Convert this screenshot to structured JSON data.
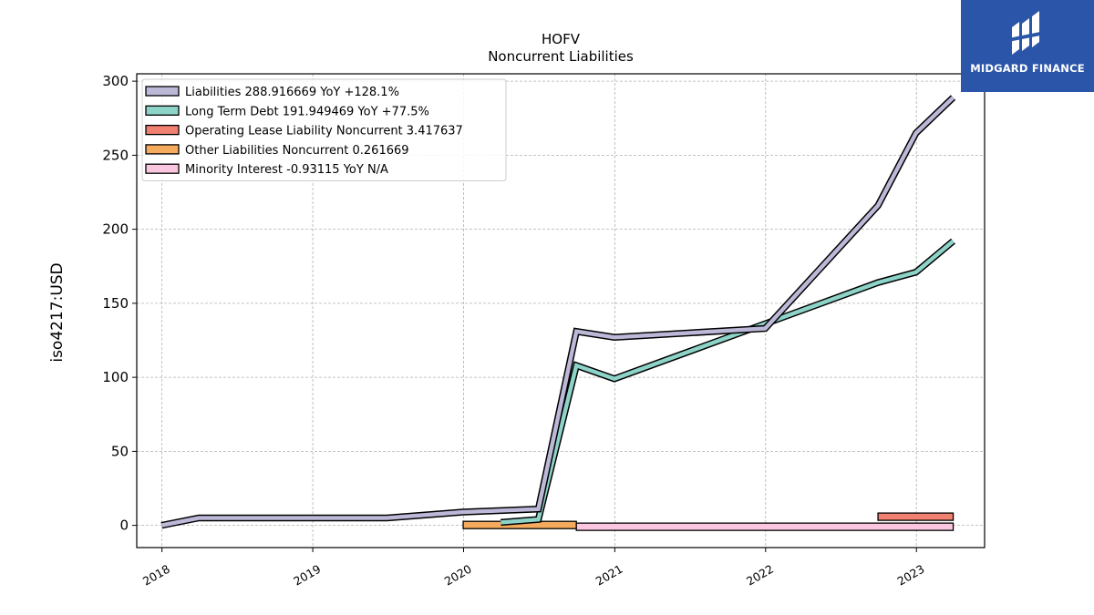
{
  "brand": {
    "name": "MIDGARD FINANCE",
    "logo_icon": "midgard-finance-logo-icon",
    "bg_color": "#2b55a8"
  },
  "chart_data": {
    "type": "line",
    "title": "HOFV",
    "subtitle": "Noncurrent  Liabilities",
    "xlabel": "",
    "ylabel": "iso4217:USD",
    "ylim": [
      -15,
      305
    ],
    "yticks": [
      0,
      50,
      100,
      150,
      200,
      250,
      300
    ],
    "xlim": [
      "2017-11-01",
      "2023-06-15"
    ],
    "xticks": [
      "2018",
      "2019",
      "2020",
      "2021",
      "2022",
      "2023"
    ],
    "grid": true,
    "legend_position": "top-left",
    "series": [
      {
        "name": "Liabilities",
        "legend": "Liabilities  288.916669 YoY +128.1%",
        "color": "#bcb8d8",
        "kind": "line",
        "x": [
          "2017-12-31",
          "2018-03-31",
          "2019-06-30",
          "2019-12-31",
          "2020-06-30",
          "2020-09-30",
          "2020-12-31",
          "2021-12-31",
          "2022-09-30",
          "2022-12-31",
          "2023-03-31"
        ],
        "y": [
          0,
          5,
          5,
          9,
          11,
          131,
          127,
          133,
          216,
          265,
          289
        ]
      },
      {
        "name": "Long Term Debt",
        "legend": "Long Term Debt  191.949469 YoY +77.5%",
        "color": "#8dd3c7",
        "kind": "line",
        "x": [
          "2020-03-31",
          "2020-06-30",
          "2020-09-30",
          "2020-12-31",
          "2022-09-30",
          "2022-12-31",
          "2023-03-31"
        ],
        "y": [
          2,
          4,
          108,
          99,
          164,
          171,
          192
        ]
      },
      {
        "name": "Operating Lease Liability Noncurrent",
        "legend": "Operating Lease Liability Noncurrent  3.417637",
        "color": "#f08070",
        "kind": "band",
        "x": [
          "2022-09-30",
          "2023-03-31"
        ],
        "y": [
          3.4,
          3.4
        ]
      },
      {
        "name": "Other Liabilities Noncurrent",
        "legend": "Other Liabilities Noncurrent  0.261669",
        "color": "#f5aa5e",
        "kind": "band",
        "x": [
          "2019-12-31",
          "2020-09-30"
        ],
        "y": [
          0.26,
          0.26
        ]
      },
      {
        "name": "Minority Interest",
        "legend": "Minority Interest  -0.93115 YoY N/A",
        "color": "#fbc6e0",
        "kind": "band",
        "x": [
          "2020-09-30",
          "2023-03-31"
        ],
        "y": [
          -0.93,
          -0.93
        ]
      }
    ]
  }
}
